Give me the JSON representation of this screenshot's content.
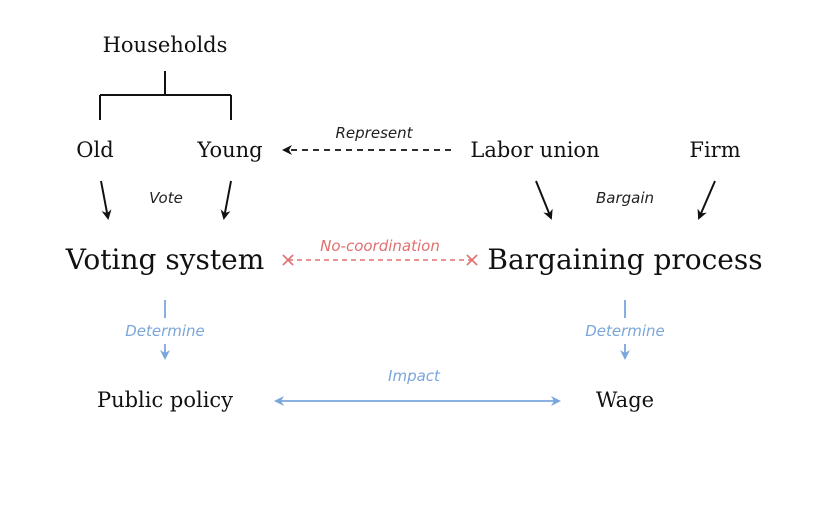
{
  "nodes": {
    "households": "Households",
    "old": "Old",
    "young": "Young",
    "labor_union": "Labor union",
    "firm": "Firm",
    "voting_system": "Voting system",
    "bargaining_process": "Bargaining process",
    "public_policy": "Public policy",
    "wage": "Wage"
  },
  "edges": {
    "represent": "Represent",
    "vote": "Vote",
    "bargain": "Bargain",
    "no_coordination": "No-coordination",
    "determine_left": "Determine",
    "determine_right": "Determine",
    "impact": "Impact"
  },
  "colors": {
    "black": "#111111",
    "red": "#e07070",
    "blue": "#7aa6dc"
  }
}
